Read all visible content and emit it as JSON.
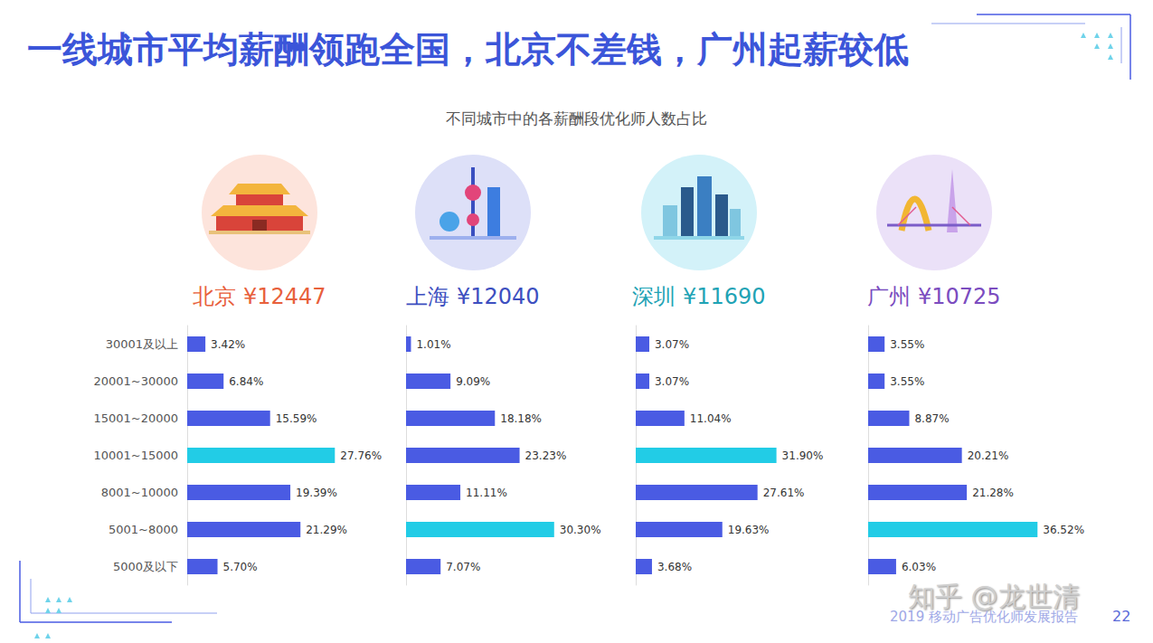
{
  "page": {
    "title": "一线城市平均薪酬领跑全国，北京不差钱，广州起薪较低",
    "subtitle": "不同城市中的各薪酬段优化师人数占比",
    "footer": "2019 移动广告优化师发展报告",
    "page_number": 22,
    "watermark": "知乎 @龙世清"
  },
  "chart_data": [
    {
      "type": "bar",
      "orientation": "horizontal",
      "title": "北京",
      "average": {
        "value": 12447,
        "label": "¥12447"
      },
      "categories": [
        "30001及以上",
        "20001~30000",
        "15001~20000",
        "10001~15000",
        "8001~10000",
        "5001~8000",
        "5000及以下"
      ],
      "values": [
        3.42,
        6.84,
        15.59,
        27.76,
        19.39,
        21.29,
        5.7
      ],
      "value_labels": [
        "3.42%",
        "6.84%",
        "15.59%",
        "27.76%",
        "19.39%",
        "21.29%",
        "5.70%"
      ],
      "colors": [
        "#4a5be3",
        "#4a5be3",
        "#4a5be3",
        "#22cce6",
        "#4a5be3",
        "#4a5be3",
        "#4a5be3"
      ],
      "xlim": [
        0,
        34
      ],
      "data_labels": true,
      "tick_labels": "y"
    },
    {
      "type": "bar",
      "orientation": "horizontal",
      "title": "上海",
      "average": {
        "value": 12040,
        "label": "¥12040"
      },
      "categories": [
        "30001及以上",
        "20001~30000",
        "15001~20000",
        "10001~15000",
        "8001~10000",
        "5001~8000",
        "5000及以下"
      ],
      "values": [
        1.01,
        9.09,
        18.18,
        23.23,
        11.11,
        30.3,
        7.07
      ],
      "value_labels": [
        "1.01%",
        "9.09%",
        "18.18%",
        "23.23%",
        "11.11%",
        "30.30%",
        "7.07%"
      ],
      "colors": [
        "#4a5be3",
        "#4a5be3",
        "#4a5be3",
        "#4a5be3",
        "#4a5be3",
        "#22cce6",
        "#4a5be3"
      ],
      "xlim": [
        0,
        37
      ],
      "data_labels": true,
      "tick_labels": false
    },
    {
      "type": "bar",
      "orientation": "horizontal",
      "title": "深圳",
      "average": {
        "value": 11690,
        "label": "¥11690"
      },
      "categories": [
        "30001及以上",
        "20001~30000",
        "15001~20000",
        "10001~15000",
        "8001~10000",
        "5001~8000",
        "5000及以下"
      ],
      "values": [
        3.07,
        3.07,
        11.04,
        31.9,
        27.61,
        19.63,
        3.68
      ],
      "value_labels": [
        "3.07%",
        "3.07%",
        "11.04%",
        "31.90%",
        "27.61%",
        "19.63%",
        "3.68%"
      ],
      "colors": [
        "#4a5be3",
        "#4a5be3",
        "#4a5be3",
        "#22cce6",
        "#4a5be3",
        "#4a5be3",
        "#4a5be3"
      ],
      "xlim": [
        0,
        41
      ],
      "data_labels": true,
      "tick_labels": false
    },
    {
      "type": "bar",
      "orientation": "horizontal",
      "title": "广州",
      "average": {
        "value": 10725,
        "label": "¥10725"
      },
      "categories": [
        "30001及以上",
        "20001~30000",
        "15001~20000",
        "10001~15000",
        "8001~10000",
        "5001~8000",
        "5000及以下"
      ],
      "values": [
        3.55,
        3.55,
        8.87,
        20.21,
        21.28,
        36.52,
        6.03
      ],
      "value_labels": [
        "3.55%",
        "3.55%",
        "8.87%",
        "20.21%",
        "21.28%",
        "36.52%",
        "6.03%"
      ],
      "colors": [
        "#4a5be3",
        "#4a5be3",
        "#4a5be3",
        "#4a5be3",
        "#4a5be3",
        "#22cce6",
        "#4a5be3"
      ],
      "xlim": [
        0,
        39
      ],
      "data_labels": true,
      "tick_labels": false
    }
  ]
}
